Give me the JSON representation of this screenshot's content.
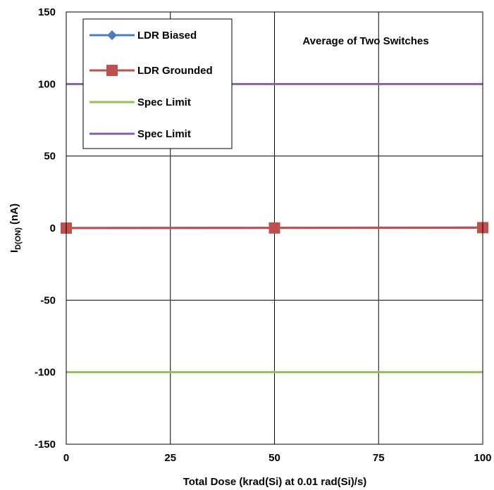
{
  "chart_data": {
    "type": "line",
    "title": "",
    "annotation": "Average of  Two Switches",
    "xlabel": "Total Dose (krad(Si) at 0.01 rad(Si)/s)",
    "ylabel_main": "I",
    "ylabel_sub": "D(ON)",
    "ylabel_unit": " (nA)",
    "xlim": [
      0,
      100
    ],
    "ylim": [
      -150,
      150
    ],
    "xticks": [
      0,
      25,
      50,
      75,
      100
    ],
    "yticks": [
      150,
      100,
      50,
      0,
      -50,
      -100,
      -150
    ],
    "grid": true,
    "legend_position": "top-left",
    "series": [
      {
        "name": "LDR Biased",
        "color": "#4a7ebb",
        "marker": "diamond",
        "x": [
          0,
          50,
          100
        ],
        "y": [
          0.1,
          0.2,
          0.4
        ]
      },
      {
        "name": "LDR Grounded",
        "color": "#c0504d",
        "marker": "square",
        "x": [
          0,
          50,
          100
        ],
        "y": [
          0.0,
          0.1,
          0.3
        ]
      },
      {
        "name": "Spec Limit",
        "color": "#9bbb59",
        "marker": "none",
        "x": [
          0,
          100
        ],
        "y": [
          -100,
          -100
        ]
      },
      {
        "name": "Spec Limit",
        "color": "#8064a2",
        "marker": "none",
        "x": [
          0,
          100
        ],
        "y": [
          100,
          100
        ]
      }
    ]
  }
}
